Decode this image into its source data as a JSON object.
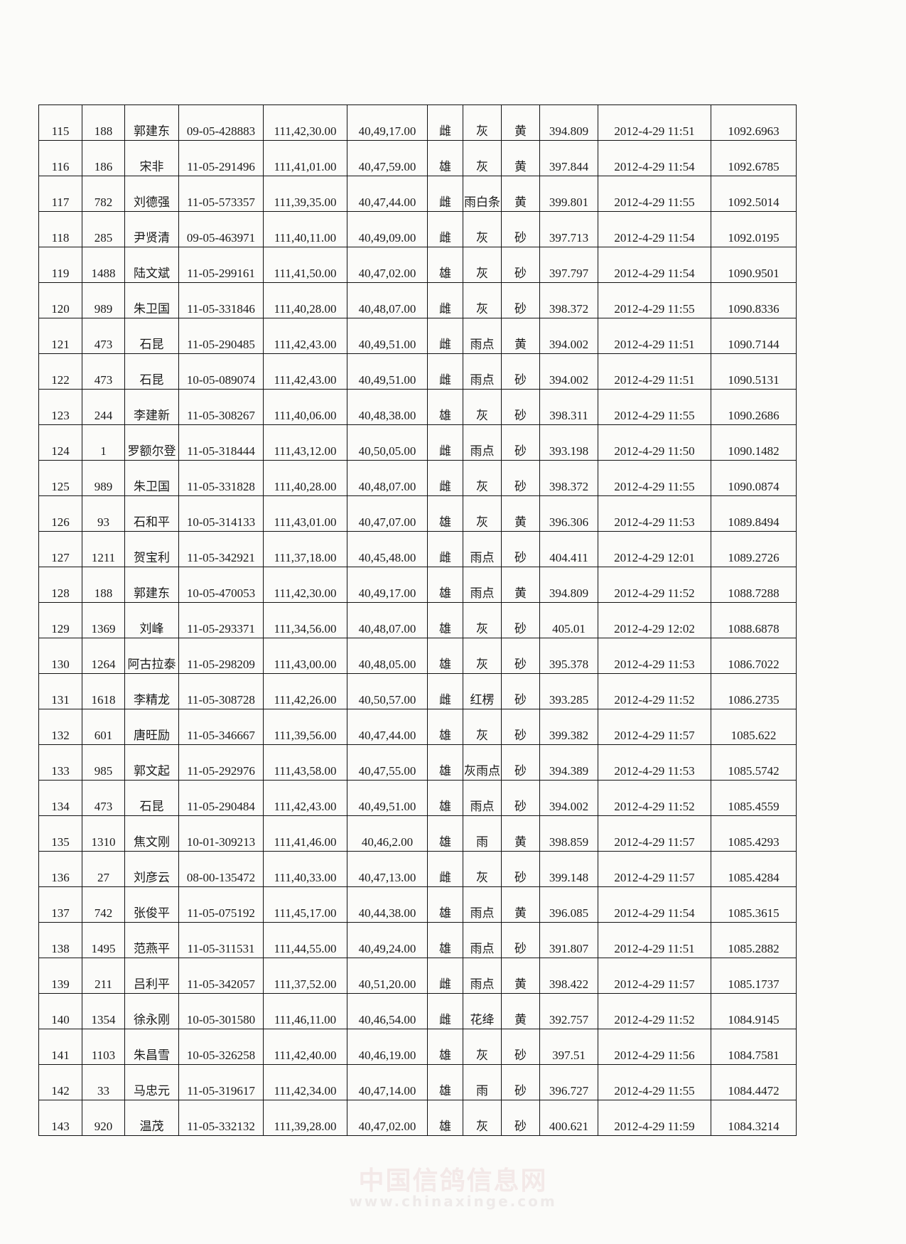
{
  "table": {
    "rows": [
      [
        "115",
        "188",
        "郭建东",
        "09-05-428883",
        "111,42,30.00",
        "40,49,17.00",
        "雌",
        "灰",
        "黄",
        "394.809",
        "2012-4-29 11:51",
        "1092.6963"
      ],
      [
        "116",
        "186",
        "宋非",
        "11-05-291496",
        "111,41,01.00",
        "40,47,59.00",
        "雄",
        "灰",
        "黄",
        "397.844",
        "2012-4-29 11:54",
        "1092.6785"
      ],
      [
        "117",
        "782",
        "刘德强",
        "11-05-573357",
        "111,39,35.00",
        "40,47,44.00",
        "雌",
        "雨白条",
        "黄",
        "399.801",
        "2012-4-29 11:55",
        "1092.5014"
      ],
      [
        "118",
        "285",
        "尹贤清",
        "09-05-463971",
        "111,40,11.00",
        "40,49,09.00",
        "雌",
        "灰",
        "砂",
        "397.713",
        "2012-4-29 11:54",
        "1092.0195"
      ],
      [
        "119",
        "1488",
        "陆文斌",
        "11-05-299161",
        "111,41,50.00",
        "40,47,02.00",
        "雄",
        "灰",
        "砂",
        "397.797",
        "2012-4-29 11:54",
        "1090.9501"
      ],
      [
        "120",
        "989",
        "朱卫国",
        "11-05-331846",
        "111,40,28.00",
        "40,48,07.00",
        "雌",
        "灰",
        "砂",
        "398.372",
        "2012-4-29 11:55",
        "1090.8336"
      ],
      [
        "121",
        "473",
        "石昆",
        "11-05-290485",
        "111,42,43.00",
        "40,49,51.00",
        "雌",
        "雨点",
        "黄",
        "394.002",
        "2012-4-29 11:51",
        "1090.7144"
      ],
      [
        "122",
        "473",
        "石昆",
        "10-05-089074",
        "111,42,43.00",
        "40,49,51.00",
        "雌",
        "雨点",
        "砂",
        "394.002",
        "2012-4-29 11:51",
        "1090.5131"
      ],
      [
        "123",
        "244",
        "李建新",
        "11-05-308267",
        "111,40,06.00",
        "40,48,38.00",
        "雄",
        "灰",
        "砂",
        "398.311",
        "2012-4-29 11:55",
        "1090.2686"
      ],
      [
        "124",
        "1",
        "罗额尔登",
        "11-05-318444",
        "111,43,12.00",
        "40,50,05.00",
        "雌",
        "雨点",
        "砂",
        "393.198",
        "2012-4-29 11:50",
        "1090.1482"
      ],
      [
        "125",
        "989",
        "朱卫国",
        "11-05-331828",
        "111,40,28.00",
        "40,48,07.00",
        "雌",
        "灰",
        "砂",
        "398.372",
        "2012-4-29 11:55",
        "1090.0874"
      ],
      [
        "126",
        "93",
        "石和平",
        "10-05-314133",
        "111,43,01.00",
        "40,47,07.00",
        "雄",
        "灰",
        "黄",
        "396.306",
        "2012-4-29 11:53",
        "1089.8494"
      ],
      [
        "127",
        "1211",
        "贺宝利",
        "11-05-342921",
        "111,37,18.00",
        "40,45,48.00",
        "雌",
        "雨点",
        "砂",
        "404.411",
        "2012-4-29 12:01",
        "1089.2726"
      ],
      [
        "128",
        "188",
        "郭建东",
        "10-05-470053",
        "111,42,30.00",
        "40,49,17.00",
        "雄",
        "雨点",
        "黄",
        "394.809",
        "2012-4-29 11:52",
        "1088.7288"
      ],
      [
        "129",
        "1369",
        "刘峰",
        "11-05-293371",
        "111,34,56.00",
        "40,48,07.00",
        "雄",
        "灰",
        "砂",
        "405.01",
        "2012-4-29 12:02",
        "1088.6878"
      ],
      [
        "130",
        "1264",
        "阿古拉泰",
        "11-05-298209",
        "111,43,00.00",
        "40,48,05.00",
        "雄",
        "灰",
        "砂",
        "395.378",
        "2012-4-29 11:53",
        "1086.7022"
      ],
      [
        "131",
        "1618",
        "李精龙",
        "11-05-308728",
        "111,42,26.00",
        "40,50,57.00",
        "雌",
        "红楞",
        "砂",
        "393.285",
        "2012-4-29 11:52",
        "1086.2735"
      ],
      [
        "132",
        "601",
        "唐旺励",
        "11-05-346667",
        "111,39,56.00",
        "40,47,44.00",
        "雄",
        "灰",
        "砂",
        "399.382",
        "2012-4-29 11:57",
        "1085.622"
      ],
      [
        "133",
        "985",
        "郭文起",
        "11-05-292976",
        "111,43,58.00",
        "40,47,55.00",
        "雄",
        "灰雨点",
        "砂",
        "394.389",
        "2012-4-29 11:53",
        "1085.5742"
      ],
      [
        "134",
        "473",
        "石昆",
        "11-05-290484",
        "111,42,43.00",
        "40,49,51.00",
        "雄",
        "雨点",
        "砂",
        "394.002",
        "2012-4-29 11:52",
        "1085.4559"
      ],
      [
        "135",
        "1310",
        "焦文刚",
        "10-01-309213",
        "111,41,46.00",
        "40,46,2.00",
        "雄",
        "雨",
        "黄",
        "398.859",
        "2012-4-29 11:57",
        "1085.4293"
      ],
      [
        "136",
        "27",
        "刘彦云",
        "08-00-135472",
        "111,40,33.00",
        "40,47,13.00",
        "雌",
        "灰",
        "砂",
        "399.148",
        "2012-4-29 11:57",
        "1085.4284"
      ],
      [
        "137",
        "742",
        "张俊平",
        "11-05-075192",
        "111,45,17.00",
        "40,44,38.00",
        "雄",
        "雨点",
        "黄",
        "396.085",
        "2012-4-29 11:54",
        "1085.3615"
      ],
      [
        "138",
        "1495",
        "范燕平",
        "11-05-311531",
        "111,44,55.00",
        "40,49,24.00",
        "雄",
        "雨点",
        "砂",
        "391.807",
        "2012-4-29 11:51",
        "1085.2882"
      ],
      [
        "139",
        "211",
        "吕利平",
        "11-05-342057",
        "111,37,52.00",
        "40,51,20.00",
        "雌",
        "雨点",
        "黄",
        "398.422",
        "2012-4-29 11:57",
        "1085.1737"
      ],
      [
        "140",
        "1354",
        "徐永刚",
        "10-05-301580",
        "111,46,11.00",
        "40,46,54.00",
        "雌",
        "花绛",
        "黄",
        "392.757",
        "2012-4-29 11:52",
        "1084.9145"
      ],
      [
        "141",
        "1103",
        "朱昌雪",
        "10-05-326258",
        "111,42,40.00",
        "40,46,19.00",
        "雄",
        "灰",
        "砂",
        "397.51",
        "2012-4-29 11:56",
        "1084.7581"
      ],
      [
        "142",
        "33",
        "马忠元",
        "11-05-319617",
        "111,42,34.00",
        "40,47,14.00",
        "雄",
        "雨",
        "砂",
        "396.727",
        "2012-4-29 11:55",
        "1084.4472"
      ],
      [
        "143",
        "920",
        "温茂",
        "11-05-332132",
        "111,39,28.00",
        "40,47,02.00",
        "雄",
        "灰",
        "砂",
        "400.621",
        "2012-4-29 11:59",
        "1084.3214"
      ]
    ]
  },
  "watermark": {
    "title": "中国信鸽信息网",
    "url": "www.chinaxinge.com"
  }
}
